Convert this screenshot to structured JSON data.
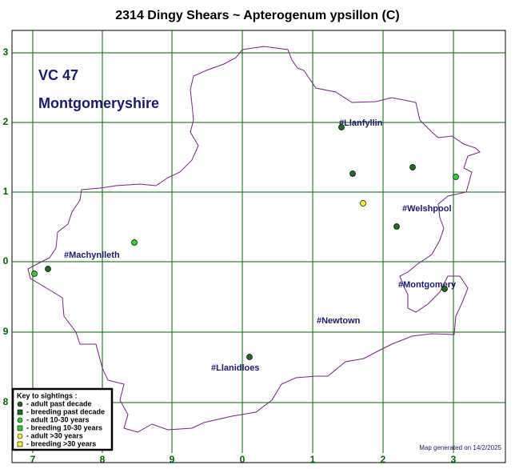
{
  "title": "2314 Dingy Shears ~ Apterogenum ypsillon (C)",
  "region": {
    "code": "VC 47",
    "name": "Montgomeryshire"
  },
  "grid": {
    "x_labels": [
      "7",
      "8",
      "9",
      "0",
      "1",
      "2",
      "3"
    ],
    "y_labels": [
      "3",
      "2",
      "1",
      "0",
      "9",
      "8"
    ]
  },
  "towns": [
    "#Llanfyllin",
    "#Welshpool",
    "#Machynlleth",
    "#Montgomery",
    "#Newtown",
    "#Llanidloes"
  ],
  "key": {
    "title": "Key to sightings :",
    "items": [
      "- adult past decade",
      "- breeding past decade",
      "- adult 10-30 years",
      "- breeding 10-30 years",
      "- adult >30 years",
      "- breeding >30 years"
    ]
  },
  "footer": "Map generated on 14/2/2025"
}
